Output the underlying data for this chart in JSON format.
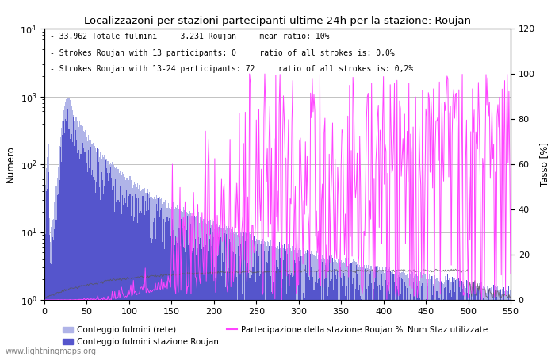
{
  "title": "Localizzazoni per stazioni partecipanti ultime 24h per la stazione: Roujan",
  "ylabel_left": "Numero",
  "ylabel_right": "Tasso [%]",
  "ann1": "- 33.962 Totale fulmini     3.231 Roujan     mean ratio: 10%",
  "ann2": "- Strokes Roujan with 13 participants: 0     ratio of all strokes is: 0,0%",
  "ann3": "- Strokes Roujan with 13-24 participants: 72     ratio of all strokes is: 0,2%",
  "watermark": "www.lightningmaps.org",
  "xlim": [
    0,
    550
  ],
  "ylim_left": [
    1,
    10000
  ],
  "ylim_right": [
    0,
    120
  ],
  "yticks_right": [
    0,
    20,
    40,
    60,
    80,
    100,
    120
  ],
  "xticks": [
    0,
    50,
    100,
    150,
    200,
    250,
    300,
    350,
    400,
    450,
    500,
    550
  ],
  "legend_label_light": "Conteggio fulmini (rete)",
  "legend_label_dark": "Conteggio fulmini stazione Roujan",
  "legend_label_stations": "Num Staz utilizzate",
  "legend_label_magenta": "Partecipazione della stazione Roujan %",
  "bar_color_light": "#b0b4e8",
  "bar_color_dark": "#5555cc",
  "line_color_magenta": "#ff44ff",
  "line_color_grey": "#555555",
  "bg_color": "#ffffff",
  "grid_color": "#aaaaaa"
}
